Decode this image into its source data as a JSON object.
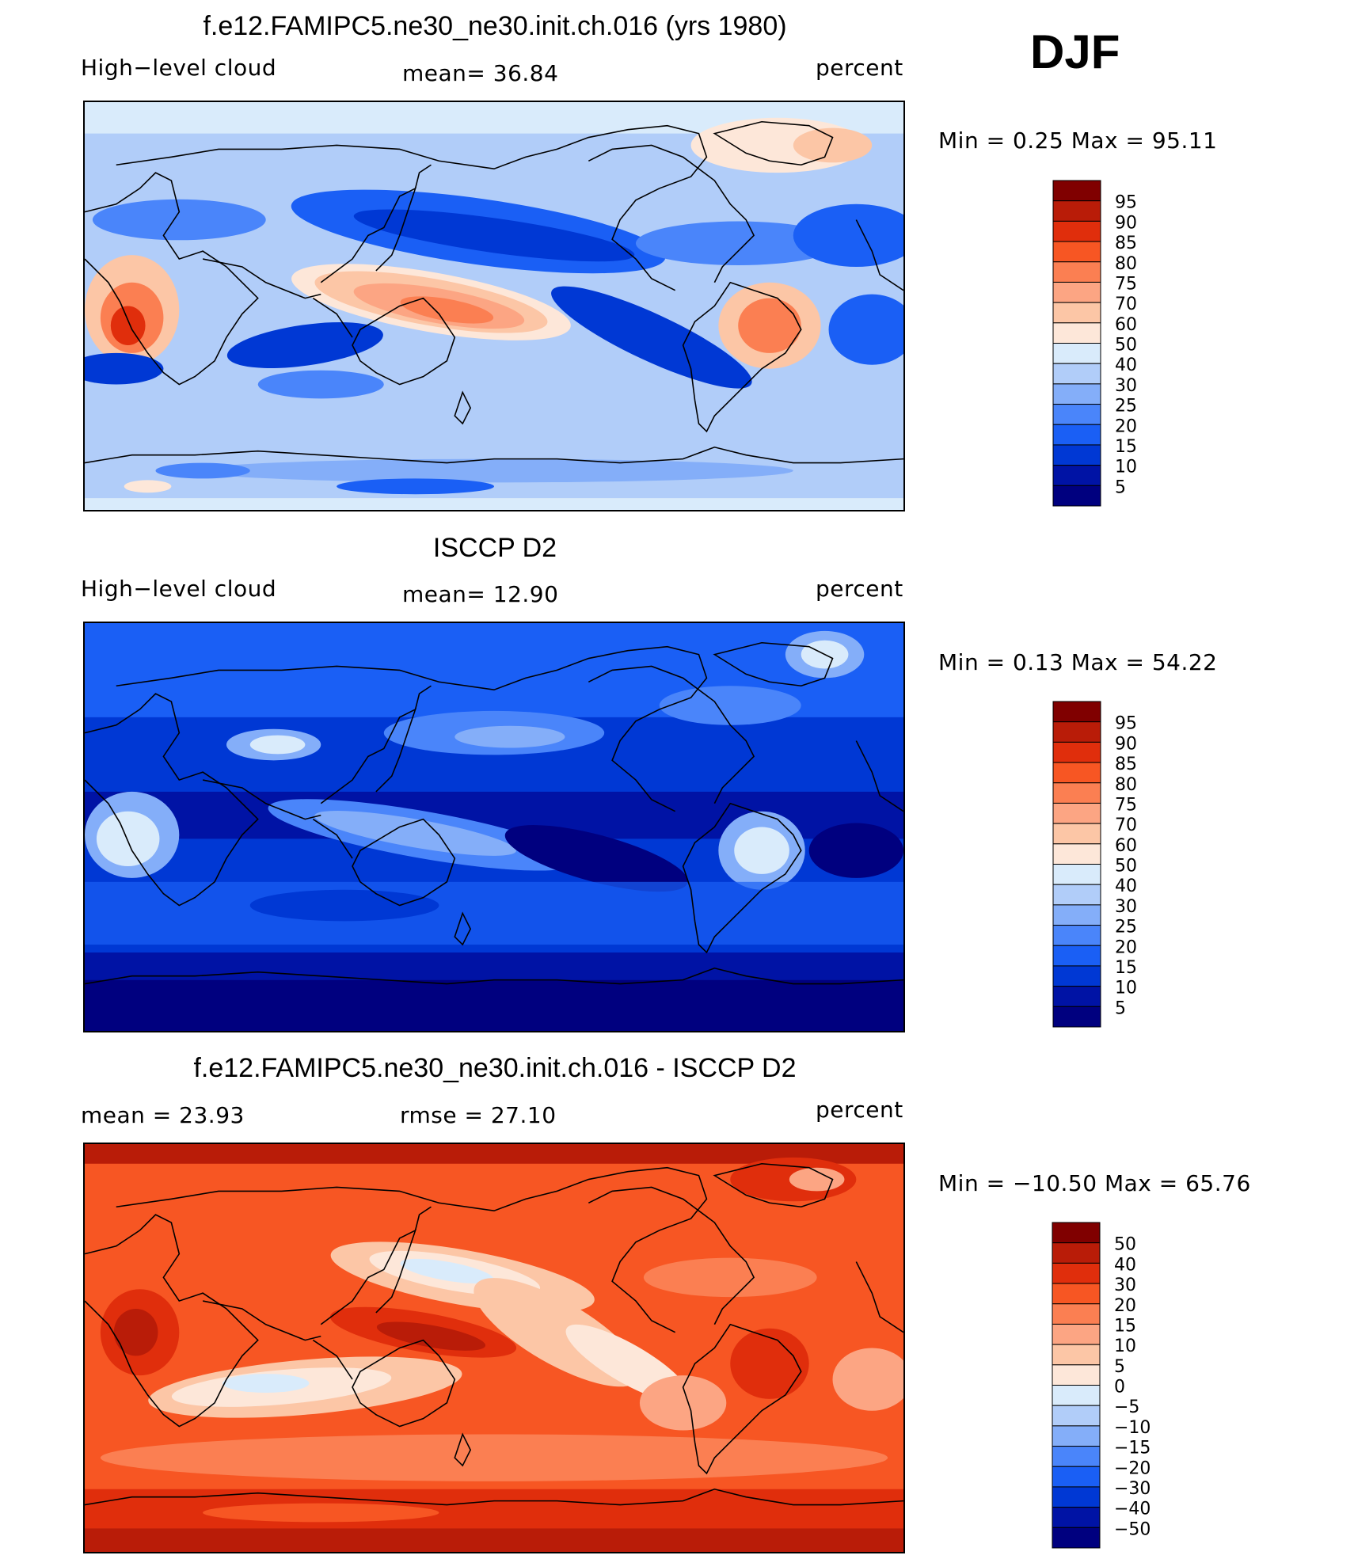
{
  "season": "DJF",
  "colors": {
    "abs_scale": [
      "#00007f",
      "#0013a5",
      "#0038d4",
      "#1a5ff5",
      "#4a85fa",
      "#84aef9",
      "#b1cdf9",
      "#d9ebfb",
      "#fde7d9",
      "#fcc6a6",
      "#fca583",
      "#fb7f52",
      "#f75623",
      "#e02e0c",
      "#b91c08",
      "#800000"
    ],
    "diff_scale": [
      "#00007f",
      "#0013a5",
      "#0038d4",
      "#1a5ff5",
      "#4a85fa",
      "#84aef9",
      "#b1cdf9",
      "#d9ebfb",
      "#fde7d9",
      "#fcc6a6",
      "#fca583",
      "#fb7f52",
      "#f75623",
      "#e02e0c",
      "#b91c08",
      "#800000"
    ],
    "coast": "#000000"
  },
  "chart_data": [
    {
      "type": "heatmap",
      "title": "f.e12.FAMIPC5.ne30_ne30.init.ch.016 (yrs 1980)",
      "variable": "High−level cloud",
      "stat_text": "mean=  36.84",
      "units": "percent",
      "mean": 36.84,
      "min": 0.25,
      "max": 95.11,
      "minmax_text": "Min =    0.25 Max =   95.11",
      "colorbar_levels": [
        "95",
        "90",
        "85",
        "80",
        "75",
        "70",
        "60",
        "50",
        "40",
        "30",
        "25",
        "20",
        "15",
        "10",
        "5"
      ]
    },
    {
      "type": "heatmap",
      "title": "ISCCP D2",
      "variable": "High−level cloud",
      "stat_text": "mean=  12.90",
      "units": "percent",
      "mean": 12.9,
      "min": 0.13,
      "max": 54.22,
      "minmax_text": "Min =    0.13 Max =   54.22",
      "colorbar_levels": [
        "95",
        "90",
        "85",
        "80",
        "75",
        "70",
        "60",
        "50",
        "40",
        "30",
        "25",
        "20",
        "15",
        "10",
        "5"
      ]
    },
    {
      "type": "heatmap",
      "title": "f.e12.FAMIPC5.ne30_ne30.init.ch.016 - ISCCP D2",
      "stat_text": "mean =   23.93",
      "rmse_text": "rmse =   27.10",
      "units": "percent",
      "mean": 23.93,
      "rmse": 27.1,
      "min": -10.5,
      "max": 65.76,
      "minmax_text": "Min = −10.50 Max =   65.76",
      "colorbar_levels": [
        "50",
        "40",
        "30",
        "20",
        "15",
        "10",
        "5",
        "0",
        "−5",
        "−10",
        "−15",
        "−20",
        "−30",
        "−40",
        "−50"
      ]
    }
  ]
}
